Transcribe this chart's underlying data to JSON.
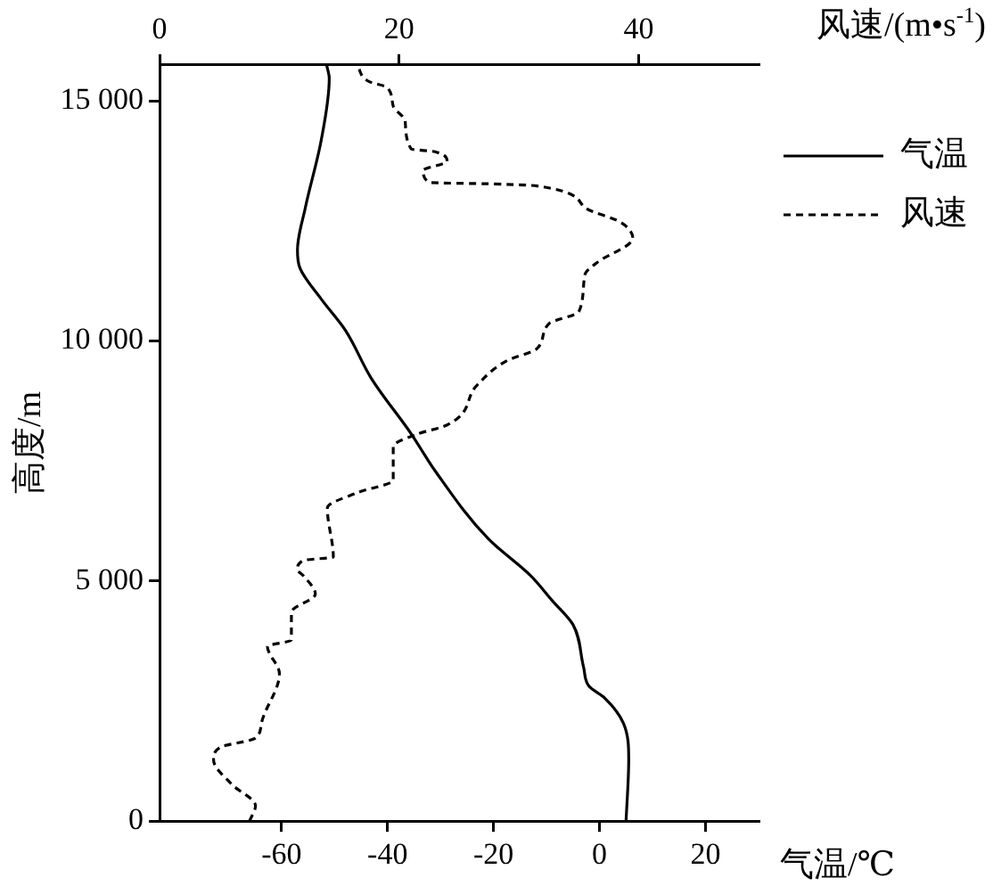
{
  "chart_data": {
    "type": "line",
    "ylabel": "高度/m",
    "xlabel": "气温/℃",
    "x2label": "风速/(m•s$^{-1}$)",
    "xlim": [
      -83,
      30
    ],
    "xticks": [
      -60,
      -40,
      -20,
      0,
      20
    ],
    "x2lim": [
      0,
      50
    ],
    "x2ticks": [
      0,
      20,
      40
    ],
    "ylim": [
      0,
      15750
    ],
    "yticks": [
      0,
      {
        "value": 5000,
        "label": "5 000"
      },
      {
        "value": 10000,
        "label": "10 000"
      },
      {
        "value": 15000,
        "label": "15 000"
      }
    ],
    "legend": "right",
    "grid": false,
    "marker": "none",
    "series": [
      {
        "name": "气温",
        "color": "#000000",
        "line_style": "solid",
        "x": [
          5,
          5.5,
          4.5,
          1,
          -2,
          -3,
          -5,
          -9,
          -13,
          -21,
          -31,
          -35.5,
          -43,
          -48,
          -52.5,
          -56.5,
          -57,
          -55.5,
          -52.5,
          -51,
          -51.5
        ],
        "values": [
          0,
          1280,
          2040,
          2560,
          2810,
          3200,
          4090,
          4600,
          5110,
          5880,
          7290,
          8060,
          9210,
          10230,
          10870,
          11510,
          11890,
          12780,
          14190,
          15470,
          15750
        ]
      },
      {
        "name": "风速",
        "color": "#000000",
        "line_style": "dashed",
        "axis": "x2",
        "x": [
          7.5,
          8,
          6,
          4.5,
          5,
          8,
          8.5,
          10,
          9,
          11,
          11,
          13,
          12,
          11.5,
          12,
          14.5,
          14,
          16.5,
          19.5,
          19.5,
          21.5,
          24,
          26.5,
          29,
          31.5,
          32.5,
          35,
          35.5,
          36.5,
          39.5,
          38.5,
          35.5,
          31.5,
          28,
          22.5,
          22,
          24,
          23,
          21,
          20.5,
          19.5,
          19,
          17.5,
          16.5
        ],
        "values": [
          0,
          320,
          770,
          1280,
          1530,
          1730,
          2040,
          3070,
          3640,
          3770,
          4350,
          4730,
          5110,
          5240,
          5430,
          5500,
          6520,
          6840,
          7100,
          7800,
          8060,
          8250,
          9080,
          9590,
          9840,
          10360,
          10610,
          11380,
          11630,
          12140,
          12470,
          12780,
          13230,
          13270,
          13300,
          13550,
          13740,
          13940,
          14000,
          14580,
          14890,
          15280,
          15400,
          15730
        ]
      }
    ]
  }
}
